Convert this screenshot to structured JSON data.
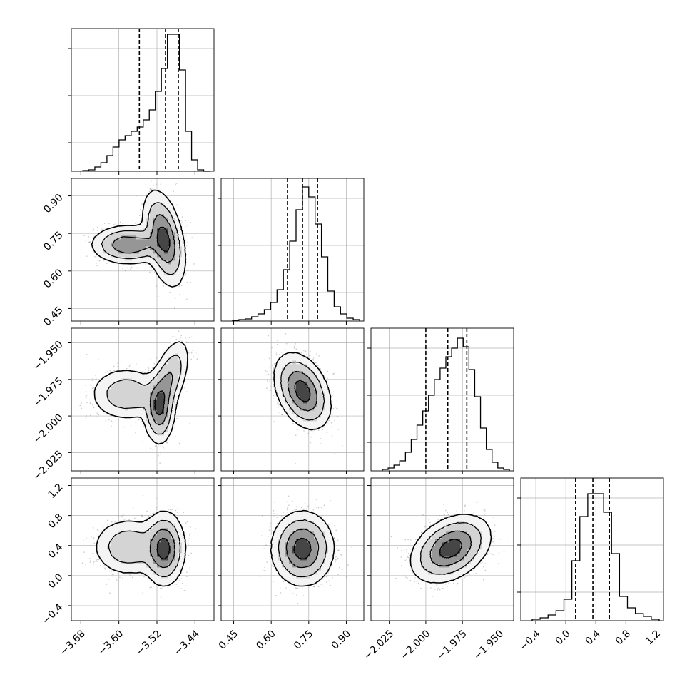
{
  "colors": {
    "frame": "#000000",
    "grid": "#b0b0b0",
    "points": "#8a8a8a",
    "contour": "#000000",
    "background": "#ffffff"
  },
  "chart_data": {
    "type": "corner",
    "grid": true,
    "parameters": [
      {
        "range": [
          -3.7,
          -3.4
        ],
        "ticks": [
          -3.68,
          -3.6,
          -3.52,
          -3.44
        ],
        "tick_labels": [
          "−3.68",
          "−3.60",
          "−3.52",
          "−3.44"
        ],
        "quantiles": [
          -3.557,
          -3.502,
          -3.475
        ]
      },
      {
        "range": [
          0.4,
          0.97
        ],
        "ticks": [
          0.45,
          0.6,
          0.75,
          0.9
        ],
        "tick_labels": [
          "0.45",
          "0.60",
          "0.75",
          "0.90"
        ],
        "quantiles": [
          0.665,
          0.725,
          0.785
        ]
      },
      {
        "range": [
          -2.0375,
          -1.94
        ],
        "ticks": [
          -2.025,
          -2.0,
          -1.975,
          -1.95
        ],
        "tick_labels": [
          "−2.025",
          "−2.000",
          "−1.975",
          "−1.950"
        ],
        "quantiles": [
          -2.0,
          -1.985,
          -1.972
        ]
      },
      {
        "range": [
          -0.6,
          1.3
        ],
        "ticks": [
          -0.4,
          0.0,
          0.4,
          0.8,
          1.2
        ],
        "tick_labels": [
          "−0.4",
          "0.0",
          "0.4",
          "0.8",
          "1.2"
        ],
        "quantiles": [
          0.13,
          0.36,
          0.58
        ]
      }
    ],
    "histograms": [
      [
        0.005,
        0.01,
        0.03,
        0.06,
        0.11,
        0.17,
        0.22,
        0.25,
        0.28,
        0.31,
        0.36,
        0.43,
        0.56,
        0.72,
        0.96,
        0.96,
        0.71,
        0.28,
        0.08,
        0.01,
        0.0
      ],
      [
        0.005,
        0.01,
        0.015,
        0.03,
        0.05,
        0.08,
        0.13,
        0.22,
        0.36,
        0.56,
        0.78,
        0.94,
        0.87,
        0.68,
        0.45,
        0.21,
        0.1,
        0.05,
        0.02,
        0.01
      ],
      [
        0.01,
        0.02,
        0.04,
        0.07,
        0.13,
        0.22,
        0.32,
        0.42,
        0.53,
        0.64,
        0.72,
        0.8,
        0.86,
        0.93,
        0.87,
        0.71,
        0.52,
        0.3,
        0.15,
        0.06,
        0.02,
        0.01
      ],
      [
        0.01,
        0.02,
        0.04,
        0.07,
        0.15,
        0.42,
        0.73,
        0.89,
        0.89,
        0.76,
        0.47,
        0.17,
        0.09,
        0.05,
        0.03,
        0.01
      ]
    ],
    "pairs": [
      {
        "x": 0,
        "y": 1,
        "components": [
          {
            "mx": -3.505,
            "my": 0.73,
            "sx": 0.02,
            "sy": 0.085,
            "rho": -0.4,
            "w": 0.6
          },
          {
            "mx": -3.58,
            "my": 0.705,
            "sx": 0.035,
            "sy": 0.035,
            "rho": 0.0,
            "w": 0.4
          }
        ]
      },
      {
        "x": 0,
        "y": 2,
        "components": [
          {
            "mx": -3.495,
            "my": -1.975,
            "sx": 0.02,
            "sy": 0.013,
            "rho": 0.55,
            "w": 0.3
          },
          {
            "mx": -3.585,
            "my": -1.985,
            "sx": 0.035,
            "sy": 0.0085,
            "rho": 0.0,
            "w": 0.35
          },
          {
            "mx": -3.515,
            "my": -1.995,
            "sx": 0.015,
            "sy": 0.011,
            "rho": 0.0,
            "w": 0.35
          }
        ]
      },
      {
        "x": 1,
        "y": 2,
        "components": [
          {
            "mx": 0.725,
            "my": -1.983,
            "sx": 0.05,
            "sy": 0.0115,
            "rho": -0.35,
            "w": 1.0
          }
        ]
      },
      {
        "x": 0,
        "y": 3,
        "components": [
          {
            "mx": -3.505,
            "my": 0.36,
            "sx": 0.02,
            "sy": 0.22,
            "rho": 0.0,
            "w": 0.6
          },
          {
            "mx": -3.58,
            "my": 0.38,
            "sx": 0.035,
            "sy": 0.18,
            "rho": 0.0,
            "w": 0.4
          }
        ]
      },
      {
        "x": 1,
        "y": 3,
        "components": [
          {
            "mx": 0.725,
            "my": 0.36,
            "sx": 0.055,
            "sy": 0.22,
            "rho": 0.0,
            "w": 1.0
          }
        ]
      },
      {
        "x": 2,
        "y": 3,
        "components": [
          {
            "mx": -1.983,
            "my": 0.36,
            "sx": 0.012,
            "sy": 0.2,
            "rho": 0.35,
            "w": 1.0
          }
        ]
      }
    ]
  }
}
